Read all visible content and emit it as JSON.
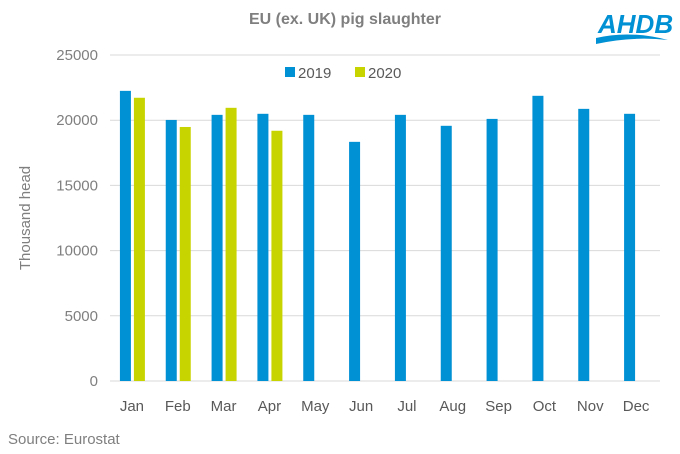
{
  "chart_data": {
    "type": "bar",
    "title": "EU (ex. UK) pig slaughter",
    "ylabel": "Thousand head",
    "xlabel": "",
    "ylim": [
      0,
      25000
    ],
    "yticks": [
      "0",
      "5000",
      "10000",
      "15000",
      "20000",
      "25000"
    ],
    "categories": [
      "Jan",
      "Feb",
      "Mar",
      "Apr",
      "May",
      "Jun",
      "Jul",
      "Aug",
      "Sep",
      "Oct",
      "Nov",
      "Dec"
    ],
    "series": [
      {
        "name": "2019",
        "color": "#0090D4",
        "values": [
          22250,
          20020,
          20410,
          20490,
          20410,
          18340,
          20410,
          19570,
          20100,
          21870,
          20870,
          20490
        ]
      },
      {
        "name": "2020",
        "color": "#C8D400",
        "values": [
          21720,
          19480,
          20950,
          19190,
          null,
          null,
          null,
          null,
          null,
          null,
          null,
          null
        ]
      }
    ],
    "grid": true,
    "legend": "top-center"
  },
  "source": "Source: Eurostat",
  "logo": "AHDB"
}
